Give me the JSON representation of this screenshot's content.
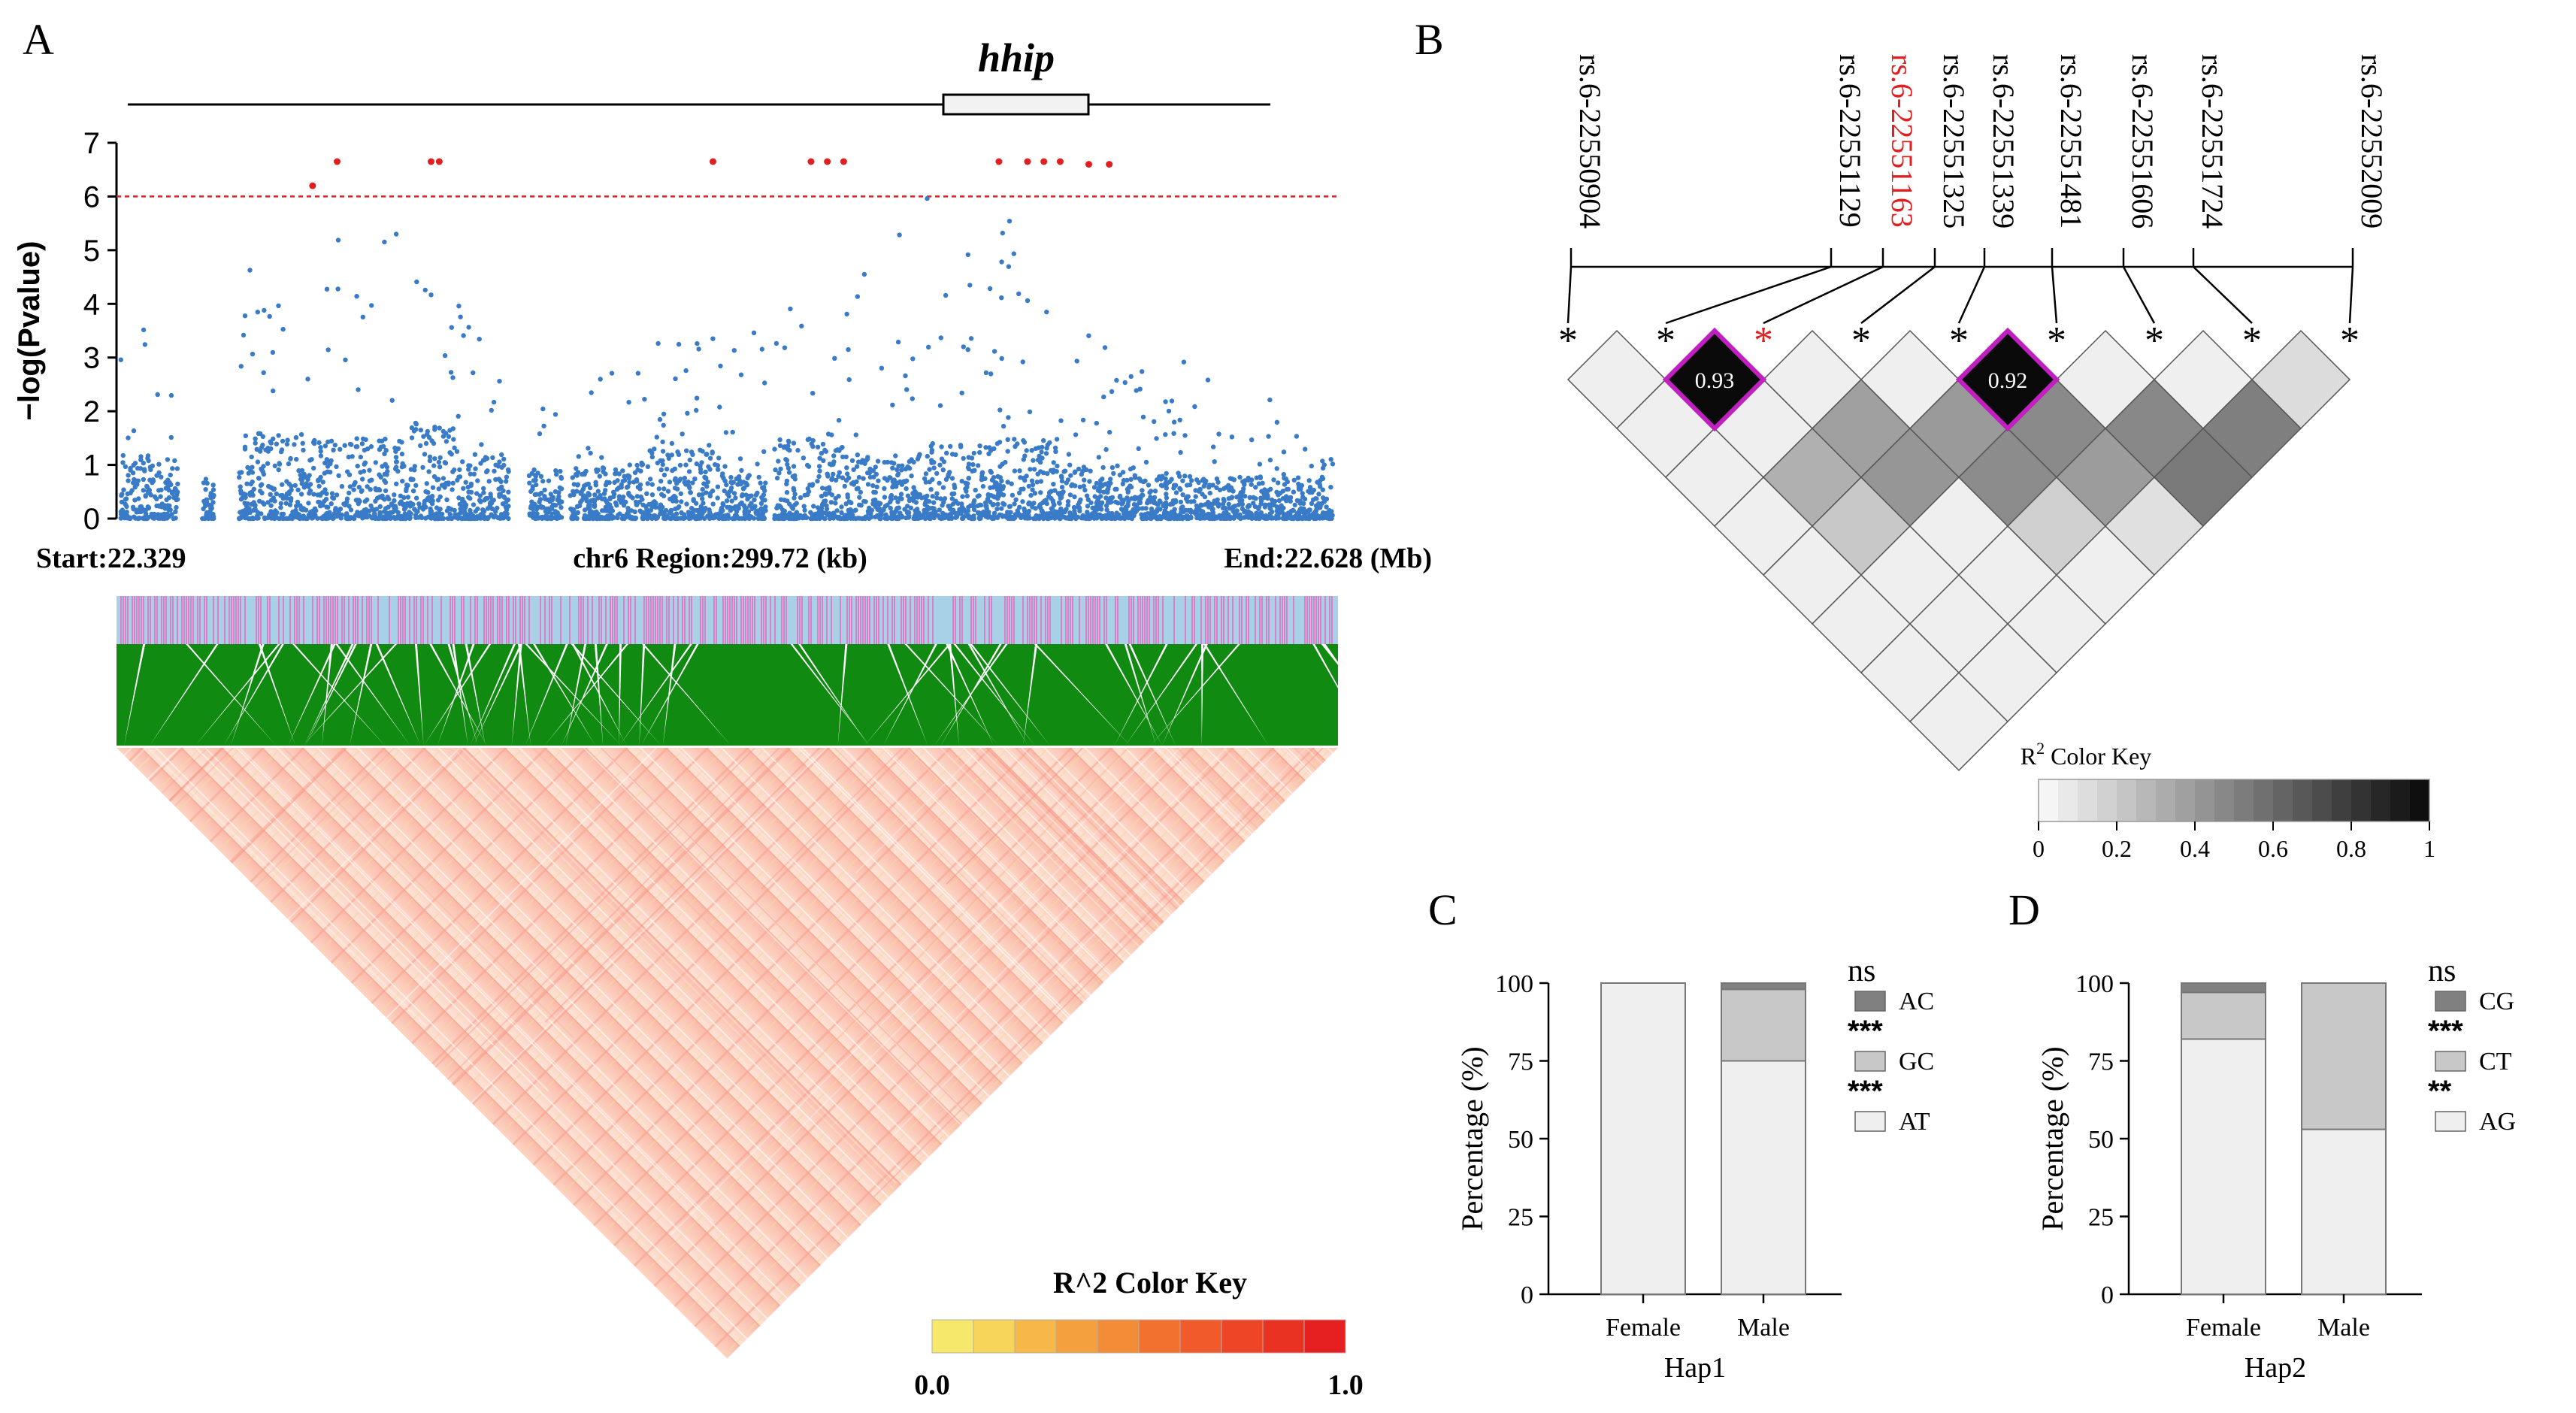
{
  "colors": {
    "snp_blue": "#3a7bc8",
    "sig_red": "#e02020",
    "track_blue": "#a8d0e6",
    "track_pink": "#d880c8",
    "ld_green": "#118a11",
    "magenta": "#c020c0",
    "gray_dark": "#808080",
    "gray_mid": "#c8c8c8",
    "gray_light": "#efefef"
  },
  "chart_data": [
    {
      "panel": "A",
      "type": "scatter",
      "gene_label": "hhip",
      "ylabel": "−log(Pvalue)",
      "ylim": [
        0,
        7
      ],
      "yticks": [
        "0",
        "1",
        "2",
        "3",
        "4",
        "5",
        "6",
        "7"
      ],
      "threshold": 6,
      "region": {
        "start": "Start:22.329",
        "center": "chr6 Region:299.72 (kb)",
        "end": "End:22.628 (Mb)"
      },
      "significant_points": [
        {
          "x": 22.377,
          "y": 6.2
        },
        {
          "x": 22.383,
          "y": 6.65
        },
        {
          "x": 22.406,
          "y": 6.65
        },
        {
          "x": 22.408,
          "y": 6.65
        },
        {
          "x": 22.475,
          "y": 6.65
        },
        {
          "x": 22.499,
          "y": 6.65
        },
        {
          "x": 22.503,
          "y": 6.65
        },
        {
          "x": 22.507,
          "y": 6.65
        },
        {
          "x": 22.545,
          "y": 6.65
        },
        {
          "x": 22.552,
          "y": 6.65
        },
        {
          "x": 22.556,
          "y": 6.65
        },
        {
          "x": 22.56,
          "y": 6.65
        },
        {
          "x": 22.567,
          "y": 6.6
        },
        {
          "x": 22.572,
          "y": 6.6
        }
      ],
      "ld_heatmap": {
        "title": "R^2 Color Key",
        "min_label": "0.0",
        "max_label": "1.0"
      }
    },
    {
      "panel": "B",
      "type": "heatmap",
      "snps": [
        "rs.6-22550904",
        "rs.6-22551129",
        "rs.6-22551163",
        "rs.6-22551325",
        "rs.6-22551339",
        "rs.6-22551481",
        "rs.6-22551606",
        "rs.6-22551724",
        "rs.6-22552009"
      ],
      "highlight_snp": "rs.6-22551163",
      "highlight_values": [
        "0.93",
        "0.92"
      ],
      "color_key": {
        "title": "R",
        "title_sup": "2",
        "title_suffix": " Color Key",
        "ticks": [
          "0",
          "0.2",
          "0.4",
          "0.6",
          "0.8",
          "1"
        ]
      },
      "star": "*"
    },
    {
      "panel": "C",
      "type": "bar",
      "stacked": true,
      "xlabel": "Hap1",
      "ylabel": "Percentage (%)",
      "ylim": [
        0,
        100
      ],
      "yticks": [
        "0",
        "25",
        "50",
        "75",
        "100"
      ],
      "categories": [
        "Female",
        "Male"
      ],
      "series": [
        {
          "name": "AT",
          "sig": "***",
          "values": [
            100,
            75
          ]
        },
        {
          "name": "GC",
          "sig": "***",
          "values": [
            0,
            23
          ]
        },
        {
          "name": "AC",
          "sig": "ns",
          "values": [
            0,
            2
          ]
        }
      ]
    },
    {
      "panel": "D",
      "type": "bar",
      "stacked": true,
      "xlabel": "Hap2",
      "ylabel": "Percentage (%)",
      "ylim": [
        0,
        100
      ],
      "yticks": [
        "0",
        "25",
        "50",
        "75",
        "100"
      ],
      "categories": [
        "Female",
        "Male"
      ],
      "series": [
        {
          "name": "AG",
          "sig": "**",
          "values": [
            82,
            53
          ]
        },
        {
          "name": "CT",
          "sig": "***",
          "values": [
            15,
            47
          ]
        },
        {
          "name": "CG",
          "sig": "ns",
          "values": [
            3,
            0
          ]
        }
      ]
    }
  ]
}
